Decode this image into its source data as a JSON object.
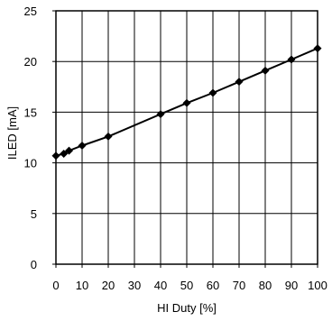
{
  "chart_data": {
    "type": "line",
    "xlabel": "HI Duty [%]",
    "ylabel": "ILED [mA]",
    "xlim": [
      0,
      100
    ],
    "ylim": [
      0,
      25
    ],
    "xticks": [
      0,
      10,
      20,
      30,
      40,
      50,
      60,
      70,
      80,
      90,
      100
    ],
    "yticks": [
      0,
      5,
      10,
      15,
      20,
      25
    ],
    "x_tick_labels": [
      "0",
      "10",
      "20",
      "30",
      "40",
      "50",
      "60",
      "70",
      "80",
      "90",
      "100"
    ],
    "y_tick_labels": [
      "0",
      "5",
      "10",
      "15",
      "20",
      "25"
    ],
    "grid": true,
    "legend": "none",
    "series": [
      {
        "x": [
          0,
          3,
          5,
          10,
          20,
          40,
          50,
          60,
          70,
          80,
          90,
          100
        ],
        "y": [
          10.7,
          10.9,
          11.2,
          11.7,
          12.6,
          14.8,
          15.9,
          16.9,
          18.0,
          19.1,
          20.2,
          21.3
        ],
        "color": "#000000",
        "marker": "diamond"
      }
    ]
  }
}
